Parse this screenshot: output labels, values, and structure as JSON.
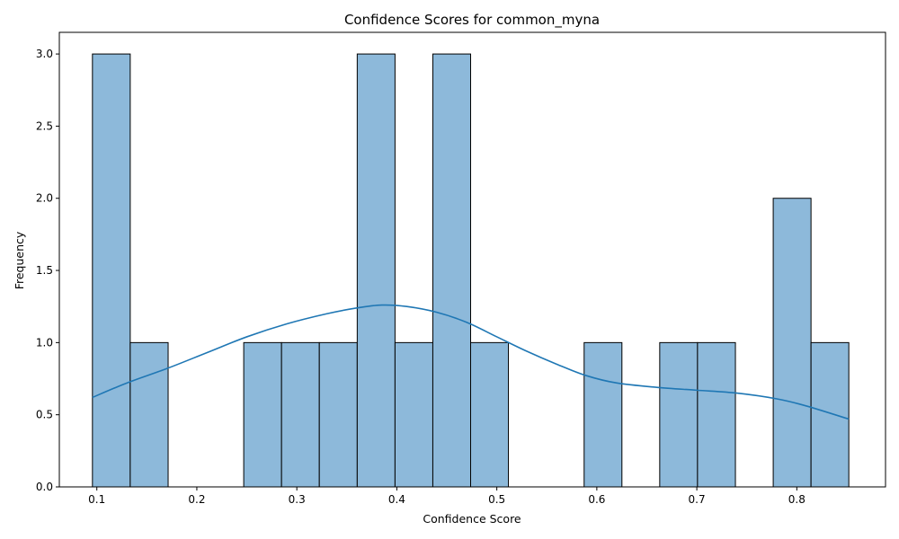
{
  "chart_data": {
    "type": "bar",
    "title": "Confidence Scores for common_myna",
    "xlabel": "Confidence Score",
    "ylabel": "Frequency",
    "xlim": [
      0.0625,
      0.8887
    ],
    "ylim": [
      0,
      3.15
    ],
    "xticks": [
      0.1,
      0.2,
      0.3,
      0.4,
      0.5,
      0.6,
      0.7,
      0.8
    ],
    "xtick_labels": [
      "0.1",
      "0.2",
      "0.3",
      "0.4",
      "0.5",
      "0.6",
      "0.7",
      "0.8"
    ],
    "yticks": [
      0,
      0.5,
      1,
      1.5,
      2,
      2.5,
      3
    ],
    "ytick_labels": [
      "0.0",
      "0.5",
      "1.0",
      "1.5",
      "2.0",
      "2.5",
      "3.0"
    ],
    "bins": [
      {
        "x0": 0.0956,
        "x1": 0.1334,
        "count": 3
      },
      {
        "x0": 0.1334,
        "x1": 0.1713,
        "count": 1
      },
      {
        "x0": 0.1713,
        "x1": 0.2091,
        "count": 0
      },
      {
        "x0": 0.2091,
        "x1": 0.2469,
        "count": 0
      },
      {
        "x0": 0.2469,
        "x1": 0.2847,
        "count": 1
      },
      {
        "x0": 0.2847,
        "x1": 0.3225,
        "count": 1
      },
      {
        "x0": 0.3225,
        "x1": 0.3604,
        "count": 1
      },
      {
        "x0": 0.3604,
        "x1": 0.3982,
        "count": 3
      },
      {
        "x0": 0.3982,
        "x1": 0.436,
        "count": 1
      },
      {
        "x0": 0.436,
        "x1": 0.4738,
        "count": 3
      },
      {
        "x0": 0.4738,
        "x1": 0.5116,
        "count": 1
      },
      {
        "x0": 0.5116,
        "x1": 0.5495,
        "count": 0
      },
      {
        "x0": 0.5495,
        "x1": 0.5873,
        "count": 0
      },
      {
        "x0": 0.5873,
        "x1": 0.6251,
        "count": 1
      },
      {
        "x0": 0.6251,
        "x1": 0.6629,
        "count": 0
      },
      {
        "x0": 0.6629,
        "x1": 0.7007,
        "count": 1
      },
      {
        "x0": 0.7007,
        "x1": 0.7386,
        "count": 1
      },
      {
        "x0": 0.7386,
        "x1": 0.7764,
        "count": 0
      },
      {
        "x0": 0.7764,
        "x1": 0.8142,
        "count": 2
      },
      {
        "x0": 0.8142,
        "x1": 0.852,
        "count": 1
      }
    ],
    "kde": [
      [
        0.0956,
        0.62
      ],
      [
        0.13,
        0.72
      ],
      [
        0.17,
        0.82
      ],
      [
        0.21,
        0.93
      ],
      [
        0.25,
        1.04
      ],
      [
        0.29,
        1.13
      ],
      [
        0.33,
        1.2
      ],
      [
        0.36,
        1.24
      ],
      [
        0.385,
        1.26
      ],
      [
        0.41,
        1.25
      ],
      [
        0.44,
        1.21
      ],
      [
        0.47,
        1.14
      ],
      [
        0.5,
        1.04
      ],
      [
        0.53,
        0.94
      ],
      [
        0.56,
        0.85
      ],
      [
        0.59,
        0.77
      ],
      [
        0.62,
        0.72
      ],
      [
        0.66,
        0.69
      ],
      [
        0.7,
        0.67
      ],
      [
        0.74,
        0.65
      ],
      [
        0.78,
        0.61
      ],
      [
        0.81,
        0.56
      ],
      [
        0.852,
        0.47
      ]
    ],
    "colors": {
      "bar": "#8db9da",
      "kde": "#1f77b4"
    },
    "grid": false
  }
}
